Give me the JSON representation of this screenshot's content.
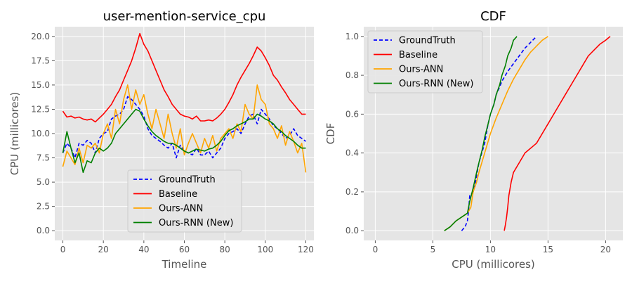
{
  "chart_data": [
    {
      "type": "line",
      "title": "user-mention-service_cpu",
      "xlabel": "Timeline",
      "ylabel": "CPU (millicores)",
      "xlim": [
        -4,
        124
      ],
      "ylim": [
        -1,
        21
      ],
      "xticks": [
        0,
        20,
        40,
        60,
        80,
        100,
        120
      ],
      "yticks": [
        0.0,
        2.5,
        5.0,
        7.5,
        10.0,
        12.5,
        15.0,
        17.5,
        20.0
      ],
      "ytick_labels": [
        "0.0",
        "2.5",
        "5.0",
        "7.5",
        "10.0",
        "12.5",
        "15.0",
        "17.5",
        "20.0"
      ],
      "grid": true,
      "legend_position": "bottom-center",
      "series": [
        {
          "name": "GroundTruth",
          "color": "#0000ff",
          "style": "dashed",
          "x": [
            0,
            2,
            4,
            6,
            8,
            10,
            12,
            14,
            16,
            18,
            20,
            22,
            24,
            26,
            28,
            30,
            32,
            34,
            36,
            38,
            40,
            42,
            44,
            46,
            48,
            50,
            52,
            54,
            56,
            58,
            60,
            62,
            64,
            66,
            68,
            70,
            72,
            74,
            76,
            78,
            80,
            82,
            84,
            86,
            88,
            90,
            92,
            94,
            96,
            98,
            100,
            102,
            104,
            106,
            108,
            110,
            112,
            114,
            116,
            118,
            120
          ],
          "values": [
            8.0,
            9.0,
            8.5,
            7.5,
            9.0,
            8.8,
            9.3,
            9.0,
            8.0,
            9.5,
            10.0,
            10.2,
            11.5,
            11.8,
            12.0,
            12.5,
            13.8,
            13.5,
            13.0,
            12.5,
            11.8,
            10.5,
            9.8,
            9.5,
            9.2,
            8.8,
            8.5,
            9.0,
            7.5,
            8.8,
            8.2,
            8.0,
            7.8,
            8.5,
            7.8,
            7.8,
            8.2,
            7.5,
            8.0,
            8.5,
            9.5,
            10.0,
            10.2,
            10.5,
            10.0,
            11.0,
            11.8,
            12.0,
            11.0,
            12.5,
            12.0,
            11.5,
            10.8,
            10.5,
            10.0,
            9.5,
            9.8,
            10.5,
            9.8,
            9.5,
            9.2
          ]
        },
        {
          "name": "Baseline",
          "color": "#ff0000",
          "style": "solid",
          "x": [
            0,
            2,
            4,
            6,
            8,
            10,
            12,
            14,
            16,
            18,
            20,
            22,
            24,
            26,
            28,
            30,
            32,
            34,
            36,
            38,
            40,
            42,
            44,
            46,
            48,
            50,
            52,
            54,
            56,
            58,
            60,
            62,
            64,
            66,
            68,
            70,
            72,
            74,
            76,
            78,
            80,
            82,
            84,
            86,
            88,
            90,
            92,
            94,
            96,
            98,
            100,
            102,
            104,
            106,
            108,
            110,
            112,
            114,
            116,
            118,
            120
          ],
          "values": [
            12.3,
            11.7,
            11.8,
            11.6,
            11.7,
            11.5,
            11.4,
            11.5,
            11.2,
            11.6,
            12.0,
            12.5,
            13.0,
            13.8,
            14.5,
            15.5,
            16.5,
            17.5,
            18.8,
            20.3,
            19.2,
            18.5,
            17.5,
            16.5,
            15.5,
            14.5,
            13.8,
            13.0,
            12.5,
            12.0,
            11.8,
            11.7,
            11.5,
            11.8,
            11.3,
            11.3,
            11.4,
            11.3,
            11.6,
            12.0,
            12.5,
            13.2,
            14.0,
            15.0,
            15.8,
            16.5,
            17.2,
            18.0,
            18.9,
            18.5,
            17.8,
            17.0,
            16.0,
            15.5,
            14.8,
            14.2,
            13.5,
            13.0,
            12.5,
            12.0,
            12.0
          ]
        },
        {
          "name": "Ours-ANN",
          "color": "#ffa500",
          "style": "solid",
          "x": [
            0,
            2,
            4,
            6,
            8,
            10,
            12,
            14,
            16,
            18,
            20,
            22,
            24,
            26,
            28,
            30,
            32,
            34,
            36,
            38,
            40,
            42,
            44,
            46,
            48,
            50,
            52,
            54,
            56,
            58,
            60,
            62,
            64,
            66,
            68,
            70,
            72,
            74,
            76,
            78,
            80,
            82,
            84,
            86,
            88,
            90,
            92,
            94,
            96,
            98,
            100,
            102,
            104,
            106,
            108,
            110,
            112,
            114,
            116,
            118,
            120
          ],
          "values": [
            6.6,
            8.2,
            7.5,
            6.8,
            8.5,
            7.0,
            8.8,
            8.5,
            9.0,
            8.0,
            10.0,
            11.0,
            9.5,
            12.5,
            11.0,
            13.5,
            15.0,
            12.5,
            14.5,
            13.0,
            14.0,
            12.0,
            10.5,
            12.5,
            11.0,
            9.5,
            12.0,
            10.0,
            8.5,
            10.5,
            7.8,
            9.0,
            10.0,
            9.0,
            8.0,
            9.5,
            8.5,
            9.8,
            8.2,
            9.5,
            10.0,
            10.5,
            9.5,
            11.0,
            10.2,
            13.0,
            12.0,
            11.5,
            15.0,
            13.5,
            13.0,
            11.0,
            10.5,
            9.5,
            10.8,
            8.8,
            10.2,
            9.2,
            8.0,
            9.0,
            6.0
          ]
        },
        {
          "name": "Ours-RNN (New)",
          "color": "#008000",
          "style": "solid",
          "x": [
            0,
            2,
            4,
            6,
            8,
            10,
            12,
            14,
            16,
            18,
            20,
            22,
            24,
            26,
            28,
            30,
            32,
            34,
            36,
            38,
            40,
            42,
            44,
            46,
            48,
            50,
            52,
            54,
            56,
            58,
            60,
            62,
            64,
            66,
            68,
            70,
            72,
            74,
            76,
            78,
            80,
            82,
            84,
            86,
            88,
            90,
            92,
            94,
            96,
            98,
            100,
            102,
            104,
            106,
            108,
            110,
            112,
            114,
            116,
            118,
            120
          ],
          "values": [
            8.0,
            10.2,
            8.5,
            7.0,
            8.0,
            6.0,
            7.2,
            7.0,
            8.0,
            8.5,
            8.2,
            8.5,
            9.0,
            10.0,
            10.5,
            11.0,
            11.5,
            12.0,
            12.5,
            12.3,
            11.5,
            10.8,
            10.2,
            9.8,
            9.5,
            9.2,
            9.0,
            9.0,
            8.8,
            8.5,
            8.2,
            8.0,
            8.2,
            8.4,
            8.3,
            8.2,
            8.4,
            8.5,
            8.8,
            9.2,
            9.8,
            10.3,
            10.5,
            10.8,
            11.0,
            11.2,
            11.5,
            11.5,
            12.0,
            11.8,
            11.5,
            11.3,
            11.0,
            10.5,
            10.2,
            9.8,
            9.5,
            9.2,
            8.8,
            8.5,
            8.5
          ]
        }
      ]
    },
    {
      "type": "line",
      "title": "CDF",
      "xlabel": "CPU (millicores)",
      "ylabel": "CDF",
      "xlim": [
        -1,
        21.5
      ],
      "ylim": [
        -0.05,
        1.05
      ],
      "xticks": [
        0,
        5,
        10,
        15,
        20
      ],
      "yticks": [
        0.0,
        0.2,
        0.4,
        0.6,
        0.8,
        1.0
      ],
      "ytick_labels": [
        "0.0",
        "0.2",
        "0.4",
        "0.6",
        "0.8",
        "1.0"
      ],
      "grid": true,
      "legend_position": "top-left",
      "series": [
        {
          "name": "GroundTruth",
          "color": "#0000ff",
          "style": "dashed",
          "x": [
            7.5,
            7.8,
            8.0,
            8.1,
            8.2,
            8.5,
            8.7,
            9.0,
            9.5,
            9.8,
            10.0,
            10.3,
            10.5,
            10.8,
            11.0,
            11.5,
            12.0,
            12.5,
            13.0,
            13.5,
            14.0
          ],
          "values": [
            0.0,
            0.02,
            0.05,
            0.1,
            0.18,
            0.2,
            0.25,
            0.35,
            0.45,
            0.55,
            0.6,
            0.65,
            0.7,
            0.74,
            0.77,
            0.82,
            0.86,
            0.9,
            0.94,
            0.97,
            1.0
          ]
        },
        {
          "name": "Baseline",
          "color": "#ff0000",
          "style": "solid",
          "x": [
            11.2,
            11.3,
            11.4,
            11.5,
            11.6,
            11.8,
            12.0,
            12.5,
            13.0,
            14.0,
            14.5,
            15.0,
            15.5,
            16.0,
            16.5,
            17.0,
            17.5,
            18.0,
            18.5,
            19.0,
            19.5,
            20.0,
            20.4
          ],
          "values": [
            0.0,
            0.03,
            0.07,
            0.12,
            0.18,
            0.25,
            0.3,
            0.35,
            0.4,
            0.45,
            0.5,
            0.55,
            0.6,
            0.65,
            0.7,
            0.75,
            0.8,
            0.85,
            0.9,
            0.93,
            0.96,
            0.98,
            1.0
          ]
        },
        {
          "name": "Ours-ANN",
          "color": "#ffa500",
          "style": "solid",
          "x": [
            6.0,
            6.5,
            7.0,
            7.5,
            8.0,
            8.3,
            8.5,
            8.8,
            9.0,
            9.5,
            10.0,
            10.5,
            11.0,
            11.5,
            12.0,
            12.5,
            13.0,
            13.5,
            14.0,
            14.5,
            15.0
          ],
          "values": [
            0.0,
            0.02,
            0.05,
            0.07,
            0.09,
            0.12,
            0.2,
            0.25,
            0.3,
            0.4,
            0.5,
            0.58,
            0.65,
            0.72,
            0.78,
            0.83,
            0.88,
            0.92,
            0.95,
            0.98,
            1.0
          ]
        },
        {
          "name": "Ours-RNN (New)",
          "color": "#008000",
          "style": "solid",
          "x": [
            6.0,
            6.5,
            7.0,
            7.5,
            8.0,
            8.2,
            8.5,
            8.8,
            9.0,
            9.3,
            9.5,
            9.8,
            10.0,
            10.3,
            10.5,
            10.8,
            11.0,
            11.3,
            11.5,
            11.8,
            12.0,
            12.3
          ],
          "values": [
            0.0,
            0.02,
            0.05,
            0.07,
            0.09,
            0.15,
            0.22,
            0.3,
            0.35,
            0.42,
            0.48,
            0.55,
            0.6,
            0.65,
            0.7,
            0.75,
            0.8,
            0.85,
            0.9,
            0.94,
            0.98,
            1.0
          ]
        }
      ]
    }
  ]
}
